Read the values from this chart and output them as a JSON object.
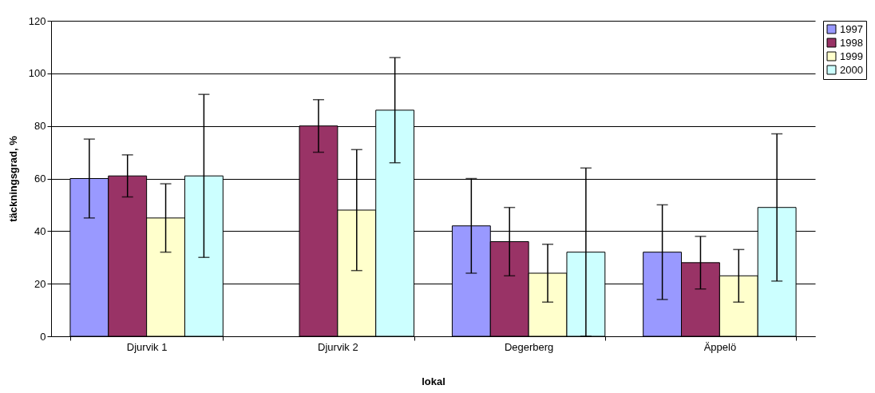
{
  "chart_data": {
    "type": "bar",
    "xlabel": "lokal",
    "ylabel": "täckningsgrad, %",
    "categories": [
      "Djurvik 1",
      "Djurvik 2",
      "Degerberg",
      "Äppelö"
    ],
    "series": [
      {
        "name": "1997",
        "color": "#9999ff",
        "values": [
          60,
          null,
          42,
          32
        ],
        "errors": [
          [
            45,
            75
          ],
          null,
          [
            24,
            60
          ],
          [
            14,
            50
          ]
        ]
      },
      {
        "name": "1998",
        "color": "#993366",
        "values": [
          61,
          80,
          36,
          28
        ],
        "errors": [
          [
            53,
            69
          ],
          [
            70,
            90
          ],
          [
            23,
            49
          ],
          [
            18,
            38
          ]
        ]
      },
      {
        "name": "1999",
        "color": "#ffffcc",
        "values": [
          45,
          48,
          24,
          23
        ],
        "errors": [
          [
            32,
            58
          ],
          [
            25,
            71
          ],
          [
            13,
            35
          ],
          [
            13,
            33
          ]
        ]
      },
      {
        "name": "2000",
        "color": "#ccffff",
        "values": [
          61,
          86,
          32,
          49
        ],
        "errors": [
          [
            30,
            92
          ],
          [
            66,
            106
          ],
          [
            0,
            64
          ],
          [
            21,
            77
          ]
        ]
      }
    ],
    "ylim": [
      0,
      120
    ],
    "yticks": [
      0,
      20,
      40,
      60,
      80,
      100,
      120
    ],
    "grid": "y",
    "legend": "top right"
  }
}
